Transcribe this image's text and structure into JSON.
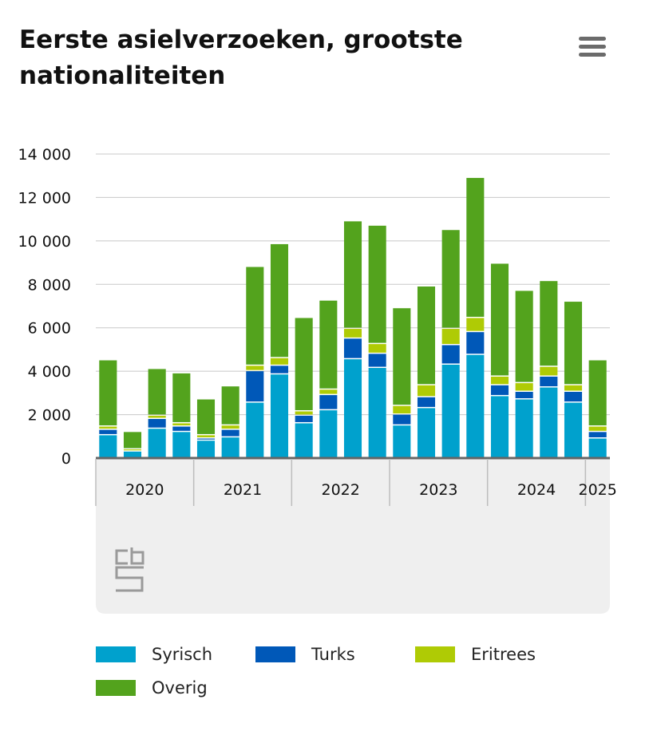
{
  "header": {
    "title": "Eerste asielverzoeken, grootste nationaliteiten",
    "menu_icon": "hamburger-menu-icon"
  },
  "chart_data": {
    "type": "bar",
    "stacked": true,
    "title": "Eerste asielverzoeken, grootste nationaliteiten",
    "xlabel": "",
    "ylabel": "",
    "ylim": [
      0,
      14000
    ],
    "y_ticks": [
      0,
      2000,
      4000,
      6000,
      8000,
      10000,
      12000,
      14000
    ],
    "y_tick_labels": [
      "0",
      "2 000",
      "4 000",
      "6 000",
      "8 000",
      "10 000",
      "12 000",
      "14 000"
    ],
    "grid": true,
    "legend_position": "bottom",
    "categories": [
      "2020 Q1",
      "2020 Q2",
      "2020 Q3",
      "2020 Q4",
      "2021 Q1",
      "2021 Q2",
      "2021 Q3",
      "2021 Q4",
      "2022 Q1",
      "2022 Q2",
      "2022 Q3",
      "2022 Q4",
      "2023 Q1",
      "2023 Q2",
      "2023 Q3",
      "2023 Q4",
      "2024 Q1",
      "2024 Q2",
      "2024 Q3",
      "2024 Q4",
      "2025 Q1"
    ],
    "year_labels": [
      "2020",
      "2021",
      "2022",
      "2023",
      "2024",
      "2025"
    ],
    "series": [
      {
        "name": "Syrisch",
        "color": "#00a1cd",
        "values": [
          1050,
          300,
          1350,
          1200,
          800,
          950,
          2550,
          3850,
          1600,
          2200,
          4550,
          4150,
          1500,
          2300,
          4300,
          4750,
          2850,
          2700,
          3250,
          2550,
          900
        ]
      },
      {
        "name": "Turks",
        "color": "#0058b8",
        "values": [
          250,
          0,
          450,
          250,
          100,
          350,
          1450,
          400,
          350,
          700,
          950,
          650,
          500,
          500,
          900,
          1050,
          500,
          350,
          500,
          500,
          300
        ]
      },
      {
        "name": "Eritrees",
        "color": "#afcb05",
        "values": [
          150,
          100,
          150,
          150,
          150,
          200,
          250,
          350,
          200,
          250,
          450,
          450,
          400,
          550,
          750,
          650,
          400,
          400,
          450,
          300,
          250
        ]
      },
      {
        "name": "Overig",
        "color": "#53a31d",
        "values": [
          3050,
          800,
          2150,
          2300,
          1650,
          1800,
          4550,
          5250,
          4300,
          4100,
          4950,
          5450,
          4500,
          4550,
          4550,
          6450,
          5200,
          4250,
          3950,
          3850,
          3050
        ]
      }
    ]
  },
  "footer": {
    "logo_icon": "cbs-logo-icon"
  }
}
